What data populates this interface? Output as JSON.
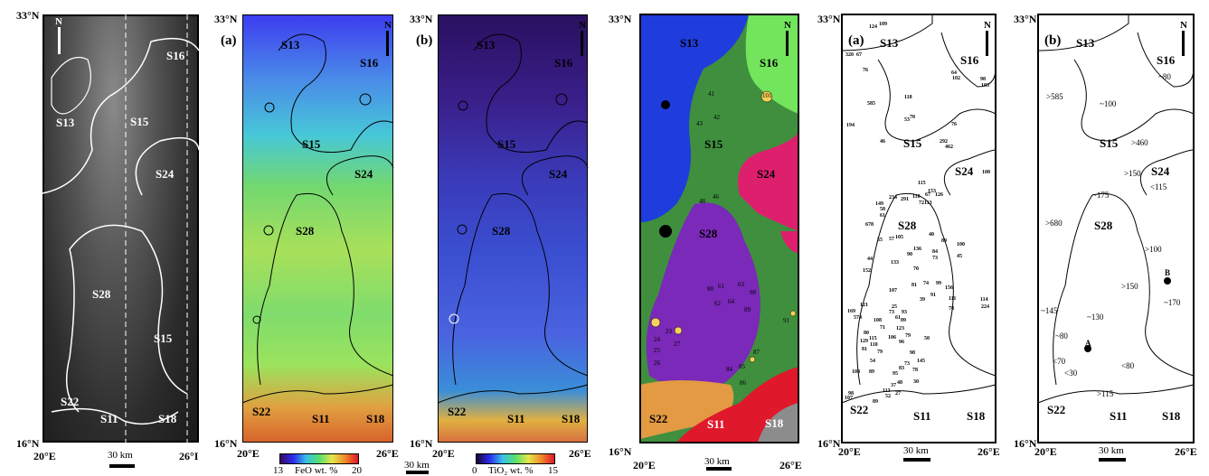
{
  "coords": {
    "n33": "33°N",
    "n16": "16°N",
    "e20": "20°E",
    "e26": "26°E",
    "e26_cut": "26°I"
  },
  "scalebar": "30 km",
  "north": "N",
  "panels": {
    "a": "(a)",
    "b": "(b)"
  },
  "units": {
    "lbl": [
      "S13",
      "S16",
      "S15",
      "S24",
      "S28",
      "S22",
      "S11",
      "S18"
    ]
  },
  "colorbars": {
    "feo": {
      "min": "13",
      "max": "20",
      "label": "FeO wt. %"
    },
    "tio2": {
      "min": "0",
      "max": "15",
      "label": "TiO₂ wt. %"
    }
  },
  "colors": {
    "S13": "#1f3cdd",
    "S15": "#3f8f3f",
    "S16": "#73e55c",
    "S24": "#de1f6e",
    "S28": "#7a29b8",
    "S22": "#e39a43",
    "S11": "#e0182b",
    "S18": "#8c8c8c",
    "A_crater": "#f5d25b"
  },
  "ages_left": [
    "124",
    "109",
    "320",
    "67",
    "76",
    "585",
    "194",
    "46",
    "53",
    "70",
    "118",
    "64",
    "98",
    "102",
    "103",
    "76",
    "292",
    "462",
    "108",
    "153",
    "115",
    "67",
    "126",
    "234",
    "291",
    "118",
    "72",
    "113",
    "149",
    "58",
    "61",
    "678",
    "55",
    "105",
    "44",
    "152",
    "90",
    "136",
    "73",
    "40",
    "89",
    "100",
    "45",
    "57",
    "133",
    "70",
    "84",
    "99",
    "107",
    "81",
    "74",
    "111",
    "39",
    "91",
    "156",
    "78",
    "114",
    "224",
    "121",
    "169",
    "574",
    "25",
    "73",
    "93",
    "61",
    "89",
    "123",
    "108",
    "80",
    "129",
    "110",
    "81",
    "71",
    "106",
    "115",
    "96",
    "79",
    "98",
    "50",
    "54",
    "79",
    "73",
    "78",
    "145",
    "83",
    "95",
    "30",
    "108",
    "89",
    "113",
    "37",
    "48",
    "52",
    "27",
    "107",
    "98",
    "89"
  ],
  "ages_right": [
    "~80",
    "~100",
    ">585",
    ">460",
    ">150",
    "<115",
    "~175",
    ">680",
    ">100",
    ">150",
    "~170",
    "~145",
    "~130",
    "~80",
    "<70",
    "<30",
    "<80",
    ">115"
  ],
  "points": {
    "A": "A",
    "B": "B"
  },
  "crater_numbers": [
    "41",
    "42",
    "43",
    "101",
    "48",
    "46",
    "80",
    "61",
    "62",
    "63",
    "64",
    "98",
    "89",
    "23",
    "24",
    "25",
    "26",
    "27",
    "84",
    "85",
    "86",
    "87",
    "91"
  ]
}
